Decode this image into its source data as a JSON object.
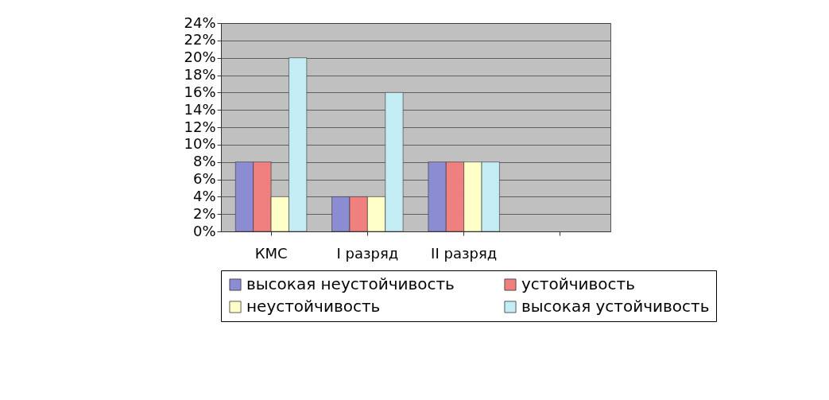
{
  "chart_data": {
    "type": "bar",
    "categories": [
      "КМС",
      "I разряд",
      "II разряд",
      null
    ],
    "series": [
      {
        "name": "высокая неустойчивость",
        "color": "#8c8cd2",
        "values": [
          8,
          4,
          8,
          null
        ]
      },
      {
        "name": "устойчивость",
        "color": "#f08080",
        "values": [
          8,
          4,
          8,
          null
        ]
      },
      {
        "name": "неустойчивость",
        "color": "#ffffc8",
        "values": [
          4,
          4,
          8,
          null
        ]
      },
      {
        "name": "высокая устойчивость",
        "color": "#c4ecf4",
        "values": [
          20,
          16,
          8,
          null
        ]
      }
    ],
    "ylim": [
      0,
      24
    ],
    "yticks": [
      {
        "value": 0,
        "label": "0%"
      },
      {
        "value": 2,
        "label": "2%"
      },
      {
        "value": 4,
        "label": "4%"
      },
      {
        "value": 6,
        "label": "6%"
      },
      {
        "value": 8,
        "label": "8%"
      },
      {
        "value": 10,
        "label": "10%"
      },
      {
        "value": 12,
        "label": "12%"
      },
      {
        "value": 14,
        "label": "14%"
      },
      {
        "value": 16,
        "label": "16%"
      },
      {
        "value": 18,
        "label": "18%"
      },
      {
        "value": 20,
        "label": "20%"
      },
      {
        "value": 22,
        "label": "22%"
      },
      {
        "value": 24,
        "label": "24%"
      }
    ],
    "grid": "y",
    "legend": "bottom"
  }
}
